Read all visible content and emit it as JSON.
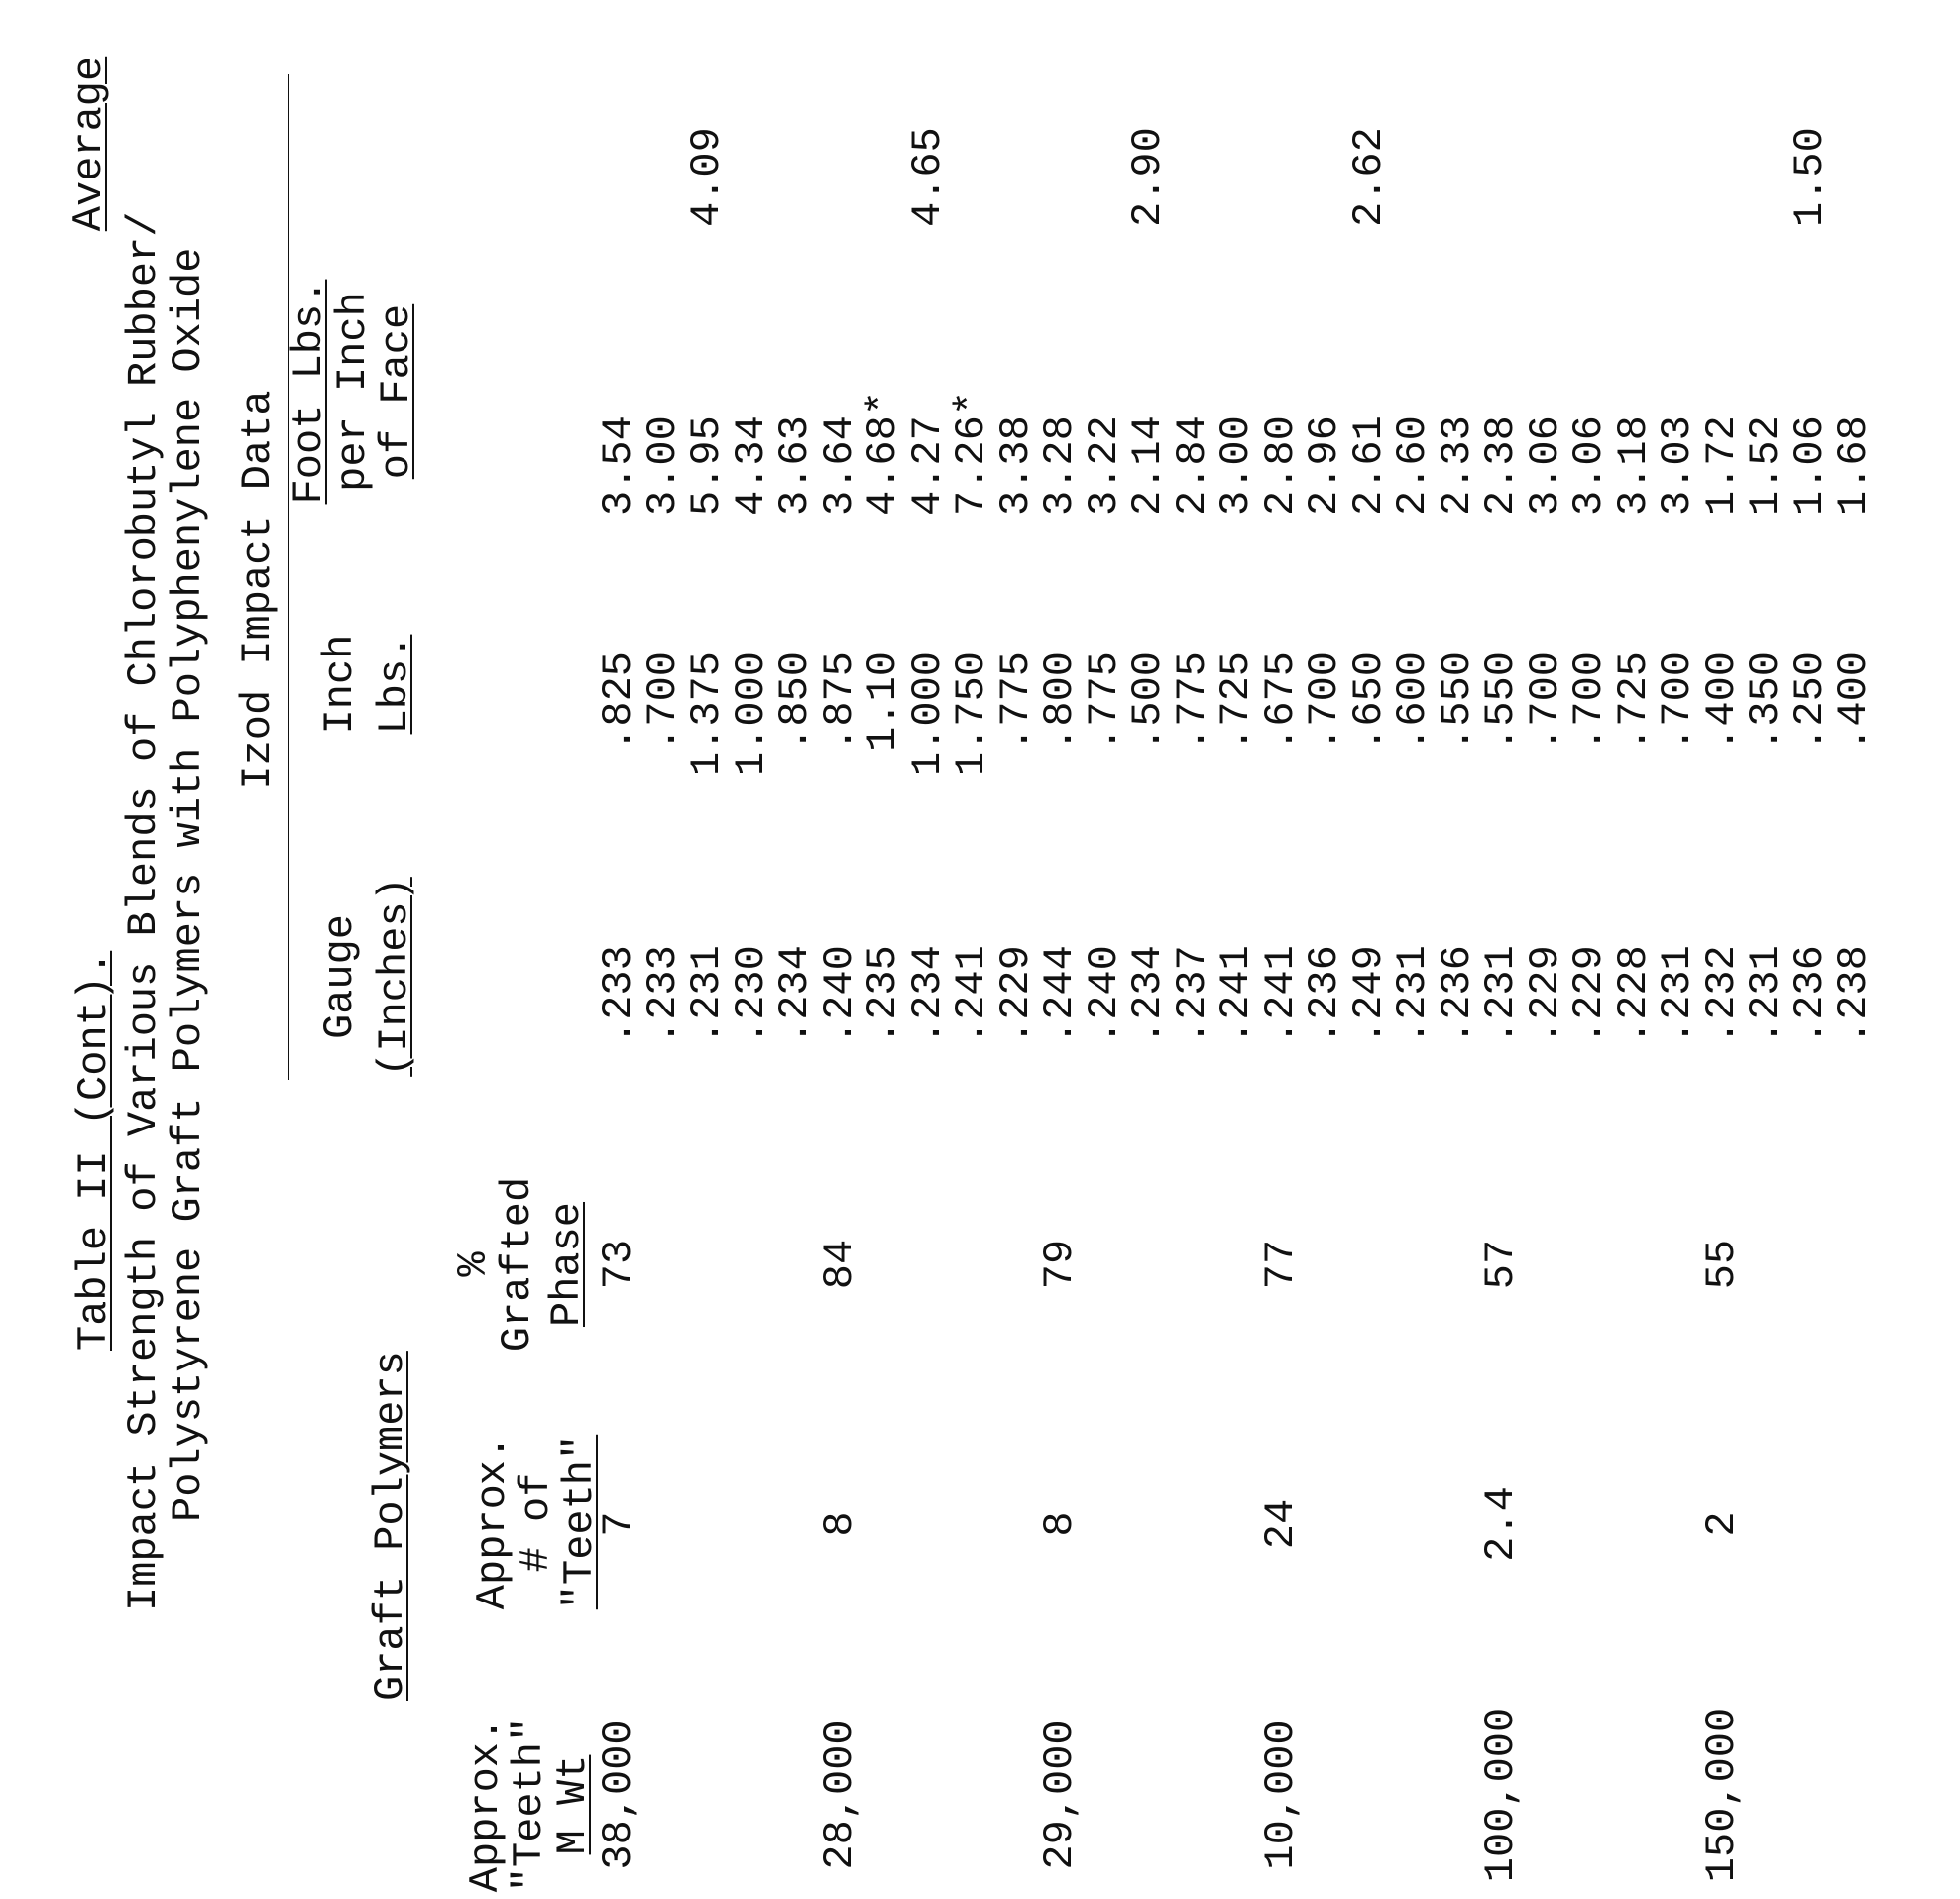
{
  "title": {
    "table_label": "Table II (Cont).",
    "line1": "Impact Strength of Various Blends of Chlorobutyl Rubber/",
    "line2": "Polystyrene Graft Polymers with Polyphenylene Oxide"
  },
  "headers": {
    "graft_polymers": "Graft Polymers",
    "izod": "Izod Impact Data",
    "mwt": [
      "Approx.",
      "\"Teeth\"",
      "M Wt"
    ],
    "teeth": [
      "Approx.",
      "# of",
      "\"Teeth\""
    ],
    "grafted": [
      "%",
      "Grafted",
      "Phase"
    ],
    "gauge": [
      "Gauge",
      "(Inches)"
    ],
    "inch_lbs": [
      "Inch",
      "Lbs."
    ],
    "foot_lbs": [
      "Foot Lbs.",
      "per Inch",
      "of Face"
    ],
    "average": "Average"
  },
  "groups": [
    {
      "mwt": "38,000",
      "teeth": "7",
      "grafted": "73",
      "average": "4.09",
      "rows": [
        [
          ".233",
          ".825",
          "3.54"
        ],
        [
          ".233",
          ".700",
          "3.00"
        ],
        [
          ".231",
          "1.375",
          "5.95"
        ],
        [
          ".230",
          "1.000",
          "4.34"
        ],
        [
          ".234",
          ".850",
          "3.63"
        ]
      ]
    },
    {
      "mwt": "28,000",
      "teeth": "8",
      "grafted": "84",
      "average": "4.65",
      "rows": [
        [
          ".240",
          ".875",
          "3.64"
        ],
        [
          ".235",
          "1.10",
          "4.68*"
        ],
        [
          ".234",
          "1.000",
          "4.27"
        ],
        [
          ".241",
          "1.750",
          "7.26*"
        ],
        [
          ".229",
          ".775",
          "3.38"
        ]
      ]
    },
    {
      "mwt": "29,000",
      "teeth": "8",
      "grafted": "79",
      "average": "2.90",
      "rows": [
        [
          ".244",
          ".800",
          "3.28"
        ],
        [
          ".240",
          ".775",
          "3.22"
        ],
        [
          ".234",
          ".500",
          "2.14"
        ],
        [
          ".237",
          ".775",
          "2.84"
        ],
        [
          ".241",
          ".725",
          "3.00"
        ]
      ]
    },
    {
      "mwt": "10,000",
      "teeth": "24",
      "grafted": "77",
      "average": "2.62",
      "rows": [
        [
          ".241",
          ".675",
          "2.80"
        ],
        [
          ".236",
          ".700",
          "2.96"
        ],
        [
          ".249",
          ".650",
          "2.61"
        ],
        [
          ".231",
          ".600",
          "2.60"
        ],
        [
          ".236",
          ".550",
          "2.33"
        ]
      ]
    },
    {
      "mwt": "100,000",
      "teeth": "2.4",
      "grafted": "57",
      "average": "",
      "rows": [
        [
          ".231",
          ".550",
          "2.38"
        ],
        [
          ".229",
          ".700",
          "3.06"
        ],
        [
          ".229",
          ".700",
          "3.06"
        ],
        [
          ".228",
          ".725",
          "3.18"
        ],
        [
          ".231",
          ".700",
          "3.03"
        ]
      ]
    },
    {
      "mwt": "150,000",
      "teeth": "2",
      "grafted": "55",
      "average": "1.50",
      "rows": [
        [
          ".232",
          ".400",
          "1.72"
        ],
        [
          ".231",
          ".350",
          "1.52"
        ],
        [
          ".236",
          ".250",
          "1.06"
        ],
        [
          ".238",
          ".400",
          "1.68"
        ]
      ]
    }
  ]
}
